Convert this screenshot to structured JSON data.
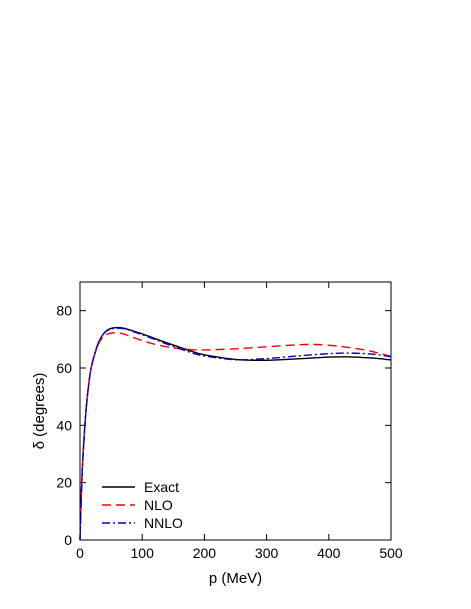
{
  "chart_data": {
    "type": "line",
    "title": "",
    "xlabel": "p (MeV)",
    "ylabel": "δ (degrees)",
    "xlim": [
      0,
      500
    ],
    "ylim": [
      0,
      90
    ],
    "xticks": [
      0,
      100,
      200,
      300,
      400,
      500
    ],
    "yticks": [
      0,
      20,
      40,
      60,
      80
    ],
    "grid": false,
    "legend_position": "bottom-left",
    "series": [
      {
        "name": "Exact",
        "color": "#000000",
        "dash": "solid",
        "x": [
          0,
          2,
          5,
          10,
          15,
          20,
          30,
          40,
          50,
          60,
          70,
          80,
          100,
          120,
          150,
          180,
          200,
          250,
          300,
          350,
          400,
          430,
          460,
          480,
          500
        ],
        "y": [
          0,
          15,
          30,
          46,
          56,
          62,
          69,
          72.5,
          73.8,
          74.1,
          73.9,
          73.3,
          71.9,
          70.3,
          68.0,
          65.8,
          64.6,
          63.0,
          62.7,
          63.2,
          63.8,
          63.9,
          63.6,
          63.3,
          62.8
        ]
      },
      {
        "name": "NLO",
        "color": "#ff0000",
        "dash": "dashed",
        "x": [
          0,
          2,
          5,
          10,
          15,
          20,
          30,
          40,
          50,
          60,
          70,
          80,
          100,
          120,
          150,
          180,
          200,
          250,
          300,
          350,
          380,
          420,
          460,
          480,
          500
        ],
        "y": [
          0,
          15,
          30,
          46,
          56,
          62,
          68.5,
          71.3,
          72.2,
          72.3,
          71.9,
          71.1,
          69.6,
          68.3,
          67.0,
          66.4,
          66.3,
          66.7,
          67.4,
          68.1,
          68.2,
          67.5,
          66.2,
          65.2,
          64.1
        ]
      },
      {
        "name": "NNLO",
        "color": "#0000cc",
        "dash": "dashdot",
        "x": [
          0,
          2,
          5,
          10,
          15,
          20,
          30,
          40,
          50,
          60,
          70,
          80,
          100,
          120,
          150,
          180,
          200,
          250,
          300,
          350,
          400,
          430,
          460,
          480,
          500
        ],
        "y": [
          0,
          15,
          30,
          46,
          56,
          62,
          69,
          72.4,
          73.6,
          73.9,
          73.7,
          73.1,
          71.6,
          70.0,
          67.5,
          65.3,
          64.2,
          62.9,
          63.3,
          64.2,
          65.0,
          65.2,
          65.0,
          64.6,
          63.9
        ]
      }
    ]
  }
}
